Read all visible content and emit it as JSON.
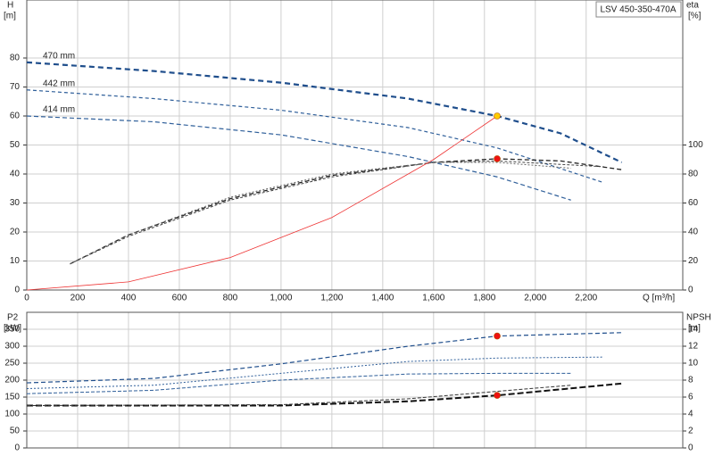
{
  "chart_data": [
    {
      "type": "line",
      "title": "LSV 450-350-470A",
      "y_label": "H",
      "y_unit": "[m]",
      "y2_label": "eta",
      "y2_unit": "[%]",
      "x_label": "Q [m³/h]",
      "xlim": [
        0,
        2580
      ],
      "xticks": [
        0,
        200,
        400,
        600,
        800,
        {
          "value": 1000,
          "label": "1,000"
        },
        {
          "value": 1200,
          "label": "1,200"
        },
        {
          "value": 1400,
          "label": "1,400"
        },
        {
          "value": 1600,
          "label": "1,600"
        },
        {
          "value": 1800,
          "label": "1,800"
        },
        {
          "value": 2000,
          "label": "2,000"
        },
        {
          "value": 2200,
          "label": "2,200"
        }
      ],
      "ylim": [
        0,
        100
      ],
      "yticks": [
        0,
        10,
        20,
        30,
        40,
        50,
        60,
        70,
        80
      ],
      "y2lim": [
        0,
        200
      ],
      "y2ticks": [
        0,
        20,
        40,
        60,
        80,
        100
      ],
      "grid": true,
      "series": [
        {
          "name": "470 mm",
          "color": "#1f4e8c",
          "width": 2.2,
          "dash": "6 4",
          "x": [
            0,
            500,
            1000,
            1500,
            1850,
            2100,
            2340
          ],
          "values": [
            78.5,
            75.5,
            71.5,
            66,
            60,
            54,
            44
          ]
        },
        {
          "name": "442 mm",
          "color": "#2f5f9a",
          "width": 1.2,
          "dash": "4 3",
          "x": [
            0,
            500,
            1000,
            1500,
            1850,
            2270
          ],
          "values": [
            69,
            66,
            62,
            56,
            49,
            37
          ]
        },
        {
          "name": "414 mm",
          "color": "#2f5f9a",
          "width": 1.2,
          "dash": "5 3",
          "x": [
            0,
            500,
            1000,
            1500,
            1850,
            2140
          ],
          "values": [
            60,
            58,
            53.5,
            46,
            39,
            31
          ]
        },
        {
          "color": "#222222",
          "width": 1.3,
          "dash": "5 3",
          "axis": "y2",
          "x": [
            170,
            400,
            800,
            1200,
            1600,
            1850,
            2100,
            2340
          ],
          "values": [
            18,
            38,
            63,
            79,
            88,
            90.5,
            89,
            83
          ]
        },
        {
          "color": "#444444",
          "width": 1,
          "dash": "3 2",
          "axis": "y2",
          "x": [
            170,
            400,
            800,
            1200,
            1600,
            1850,
            2270
          ],
          "values": [
            18,
            37,
            62,
            78,
            88,
            89,
            85
          ]
        },
        {
          "color": "#666666",
          "width": 1,
          "dash": "2 2",
          "axis": "y2",
          "x": [
            170,
            400,
            800,
            1200,
            1600,
            1850,
            2140
          ],
          "values": [
            18,
            38,
            64,
            80,
            88,
            88,
            84
          ]
        },
        {
          "color": "#ee3333",
          "width": 0.8,
          "x": [
            0,
            400,
            800,
            1200,
            1600,
            1850
          ],
          "values": [
            0,
            2.8,
            11.2,
            25,
            45,
            60
          ]
        }
      ],
      "points": [
        {
          "color": "#ffcc00",
          "x": 1850,
          "value": 60
        },
        {
          "color": "#ee1111",
          "axis": "y2",
          "x": 1850,
          "value": 90.5
        }
      ]
    },
    {
      "type": "line",
      "y_label": "P2",
      "y_unit": "[kW]",
      "y2_label": "NPSH",
      "y2_unit": "[m]",
      "xlim": [
        0,
        2580
      ],
      "ylim": [
        0,
        400
      ],
      "yticks": [
        0,
        50,
        100,
        150,
        200,
        250,
        300,
        350
      ],
      "y2lim": [
        0,
        16
      ],
      "y2ticks": [
        0,
        2,
        4,
        6,
        8,
        10,
        12,
        14
      ],
      "grid": true,
      "series": [
        {
          "color": "#1f4e8c",
          "width": 1.2,
          "dash": "5 3",
          "x": [
            0,
            500,
            1000,
            1500,
            1850,
            2340
          ],
          "values": [
            192,
            205,
            248,
            300,
            330,
            340
          ]
        },
        {
          "color": "#2f5f9a",
          "width": 1,
          "dash": "2 2",
          "x": [
            0,
            500,
            1000,
            1500,
            1850,
            2270
          ],
          "values": [
            175,
            185,
            220,
            255,
            265,
            268
          ]
        },
        {
          "color": "#2f5f9a",
          "width": 1,
          "dash": "4 2",
          "x": [
            0,
            500,
            1000,
            1500,
            1850,
            2140
          ],
          "values": [
            160,
            170,
            200,
            218,
            220,
            220
          ]
        },
        {
          "color": "#111111",
          "width": 2,
          "dash": "7 3",
          "axis": "y2",
          "x": [
            0,
            1000,
            1500,
            1850,
            2340
          ],
          "values": [
            5,
            5,
            5.5,
            6.2,
            7.6
          ]
        },
        {
          "color": "#333333",
          "width": 1,
          "dash": "4 2",
          "axis": "y2",
          "x": [
            0,
            1000,
            1500,
            2140
          ],
          "values": [
            5,
            5.1,
            5.8,
            7.4
          ]
        }
      ],
      "points": [
        {
          "color": "#ee1111",
          "x": 1850,
          "value": 330
        },
        {
          "color": "#ee1111",
          "axis": "y2",
          "x": 1850,
          "value": 6.2
        }
      ]
    }
  ]
}
